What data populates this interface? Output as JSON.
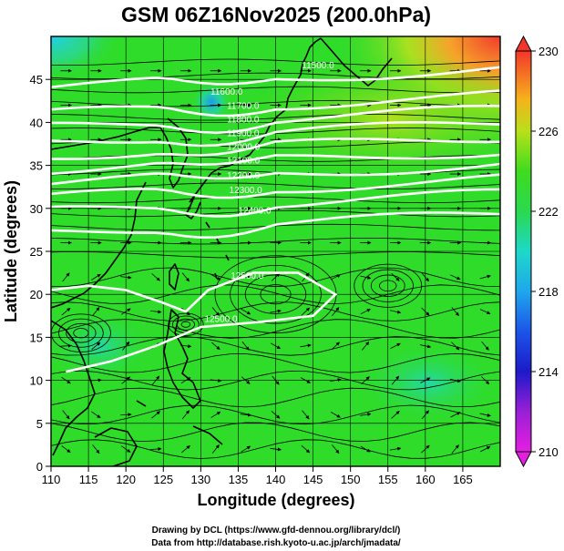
{
  "chart_data": {
    "type": "heatmap",
    "title": "GSM 06Z16Nov2025 (200.0hPa)",
    "xlabel": "Longitude (degrees)",
    "ylabel": "Latitude (degrees)",
    "xlim": [
      110,
      170
    ],
    "ylim": [
      0,
      50
    ],
    "x_ticks": [
      "110",
      "115",
      "120",
      "125",
      "130",
      "135",
      "140",
      "145",
      "150",
      "155",
      "160",
      "165"
    ],
    "y_ticks": [
      "0",
      "5",
      "10",
      "15",
      "20",
      "25",
      "30",
      "35",
      "40",
      "45"
    ],
    "colorbar": {
      "range": [
        210,
        230
      ],
      "ticks": [
        "210",
        "214",
        "218",
        "222",
        "226",
        "230"
      ]
    },
    "contour_labels": [
      {
        "text": "11500.0",
        "lon": 143.5,
        "lat": 46.3
      },
      {
        "text": "11600.0",
        "lon": 131.3,
        "lat": 43.2
      },
      {
        "text": "11700.0",
        "lon": 133.5,
        "lat": 41.6
      },
      {
        "text": "11800.0",
        "lon": 133.5,
        "lat": 40.0
      },
      {
        "text": "11900.0",
        "lon": 133.5,
        "lat": 38.4
      },
      {
        "text": "12000.0",
        "lon": 133.5,
        "lat": 36.8
      },
      {
        "text": "12100.0",
        "lon": 133.5,
        "lat": 35.2
      },
      {
        "text": "12200.0",
        "lon": 133.5,
        "lat": 33.5
      },
      {
        "text": "12300.0",
        "lon": 133.8,
        "lat": 31.8
      },
      {
        "text": "12400.0",
        "lon": 135.0,
        "lat": 29.4
      },
      {
        "text": "12500.0",
        "lon": 134.0,
        "lat": 21.8
      },
      {
        "text": "12500.0",
        "lon": 130.5,
        "lat": 16.8
      }
    ],
    "credits": [
      "Drawing by DCL (https://www.gfd-dennou.org/library/dcl/)",
      "Data from http://database.rish.kyoto-u.ac.jp/arch/jmadata/"
    ],
    "colors": {
      "field_base": "#2fdc2a",
      "warm": "#f3523a",
      "cool": "#1ed8d8",
      "contour": "#ffffff",
      "coast": "#000000"
    }
  }
}
